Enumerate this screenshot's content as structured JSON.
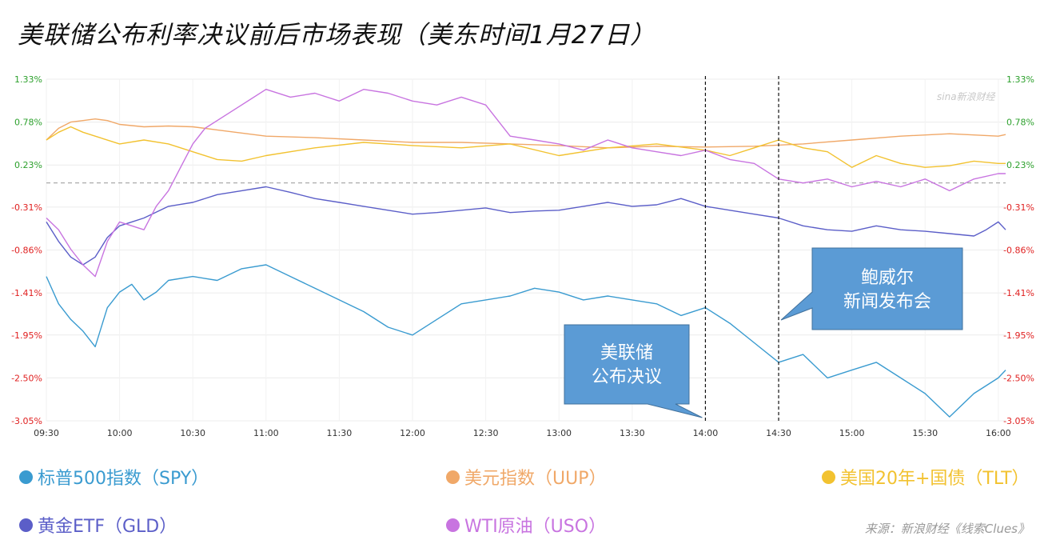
{
  "title": "美联储公布利率决议前后市场表现（美东时间1月27日）",
  "watermark": "sina新浪财经",
  "source": "来源：新浪财经《线索Clues》",
  "colors": {
    "spy": "#3a9bd0",
    "uup": "#f0a868",
    "tlt": "#f2c230",
    "gld": "#5b5ec8",
    "uso": "#c874e0",
    "positive_tick": "#2ca02c",
    "negative_tick": "#e02020",
    "callout_fill": "#5b9bd5",
    "baseline": "#aaaaaa"
  },
  "chart_data": {
    "type": "line",
    "x_ticks": [
      "09:30",
      "10:00",
      "10:30",
      "11:00",
      "11:30",
      "12:00",
      "12:30",
      "13:00",
      "13:30",
      "14:00",
      "14:30",
      "15:00",
      "15:30",
      "16:00"
    ],
    "x_range_minutes": [
      570,
      963
    ],
    "y_ticks": [
      "1.33%",
      "0.78%",
      "0.23%",
      "-0.31%",
      "-0.86%",
      "-1.41%",
      "-1.95%",
      "-2.50%",
      "-3.05%"
    ],
    "y_tick_values": [
      1.33,
      0.78,
      0.23,
      -0.31,
      -0.86,
      -1.41,
      -1.95,
      -2.5,
      -3.05
    ],
    "ylim": [
      -3.05,
      1.33
    ],
    "baseline": 0,
    "grid": true,
    "series": [
      {
        "key": "uup",
        "name": "美元指数（UUP）",
        "x": [
          570,
          575,
          580,
          585,
          590,
          595,
          600,
          610,
          620,
          630,
          640,
          660,
          680,
          700,
          720,
          740,
          760,
          780,
          800,
          820,
          840,
          860,
          880,
          900,
          920,
          940,
          960,
          963
        ],
        "y": [
          0.55,
          0.7,
          0.78,
          0.8,
          0.82,
          0.8,
          0.75,
          0.72,
          0.73,
          0.72,
          0.68,
          0.6,
          0.58,
          0.55,
          0.52,
          0.52,
          0.5,
          0.48,
          0.45,
          0.47,
          0.46,
          0.47,
          0.5,
          0.55,
          0.6,
          0.63,
          0.6,
          0.62
        ]
      },
      {
        "key": "tlt",
        "name": "美国20年+国债（TLT）",
        "x": [
          570,
          575,
          580,
          585,
          590,
          600,
          610,
          620,
          630,
          640,
          650,
          660,
          680,
          700,
          720,
          740,
          760,
          780,
          800,
          820,
          840,
          850,
          860,
          870,
          880,
          890,
          900,
          910,
          920,
          930,
          940,
          950,
          960,
          963
        ],
        "y": [
          0.55,
          0.65,
          0.72,
          0.65,
          0.6,
          0.5,
          0.55,
          0.5,
          0.4,
          0.3,
          0.28,
          0.35,
          0.45,
          0.52,
          0.48,
          0.45,
          0.5,
          0.35,
          0.45,
          0.5,
          0.42,
          0.35,
          0.45,
          0.55,
          0.45,
          0.4,
          0.2,
          0.35,
          0.25,
          0.2,
          0.22,
          0.28,
          0.25,
          0.25
        ]
      },
      {
        "key": "gld",
        "name": "黄金ETF（GLD）",
        "x": [
          570,
          575,
          580,
          585,
          590,
          595,
          600,
          605,
          610,
          620,
          630,
          640,
          650,
          660,
          670,
          680,
          690,
          700,
          710,
          720,
          730,
          740,
          750,
          760,
          770,
          780,
          790,
          800,
          810,
          820,
          830,
          840,
          850,
          860,
          870,
          880,
          890,
          900,
          910,
          920,
          930,
          940,
          950,
          955,
          960,
          963
        ],
        "y": [
          -0.5,
          -0.75,
          -0.95,
          -1.05,
          -0.95,
          -0.7,
          -0.55,
          -0.5,
          -0.45,
          -0.3,
          -0.25,
          -0.15,
          -0.1,
          -0.05,
          -0.12,
          -0.2,
          -0.25,
          -0.3,
          -0.35,
          -0.4,
          -0.38,
          -0.35,
          -0.32,
          -0.38,
          -0.36,
          -0.35,
          -0.3,
          -0.25,
          -0.3,
          -0.28,
          -0.2,
          -0.3,
          -0.35,
          -0.4,
          -0.45,
          -0.55,
          -0.6,
          -0.62,
          -0.55,
          -0.6,
          -0.62,
          -0.65,
          -0.68,
          -0.6,
          -0.5,
          -0.6
        ]
      },
      {
        "key": "uso",
        "name": "WTI原油（USO）",
        "x": [
          570,
          575,
          580,
          585,
          590,
          595,
          600,
          605,
          610,
          615,
          620,
          625,
          630,
          635,
          640,
          650,
          660,
          670,
          680,
          690,
          700,
          710,
          720,
          730,
          740,
          750,
          760,
          770,
          780,
          790,
          800,
          810,
          820,
          830,
          840,
          850,
          860,
          870,
          880,
          890,
          900,
          910,
          920,
          930,
          940,
          950,
          960,
          963
        ],
        "y": [
          -0.45,
          -0.6,
          -0.85,
          -1.05,
          -1.2,
          -0.75,
          -0.5,
          -0.55,
          -0.6,
          -0.3,
          -0.1,
          0.2,
          0.5,
          0.7,
          0.8,
          1.0,
          1.2,
          1.1,
          1.15,
          1.05,
          1.2,
          1.15,
          1.05,
          1.0,
          1.1,
          1.0,
          0.6,
          0.55,
          0.5,
          0.42,
          0.55,
          0.45,
          0.4,
          0.35,
          0.42,
          0.3,
          0.25,
          0.05,
          0.0,
          0.05,
          -0.05,
          0.02,
          -0.05,
          0.05,
          -0.1,
          0.05,
          0.12,
          0.12
        ]
      },
      {
        "key": "spy",
        "name": "标普500指数（SPY）",
        "x": [
          570,
          575,
          580,
          585,
          590,
          595,
          600,
          605,
          610,
          615,
          620,
          630,
          640,
          650,
          660,
          670,
          680,
          690,
          700,
          710,
          720,
          730,
          740,
          750,
          760,
          770,
          780,
          790,
          800,
          810,
          820,
          830,
          840,
          850,
          860,
          870,
          880,
          890,
          900,
          910,
          920,
          930,
          940,
          950,
          960,
          963
        ],
        "y": [
          -1.2,
          -1.55,
          -1.75,
          -1.9,
          -2.1,
          -1.6,
          -1.4,
          -1.3,
          -1.5,
          -1.4,
          -1.25,
          -1.2,
          -1.25,
          -1.1,
          -1.05,
          -1.2,
          -1.35,
          -1.5,
          -1.65,
          -1.85,
          -1.95,
          -1.75,
          -1.55,
          -1.5,
          -1.45,
          -1.35,
          -1.4,
          -1.5,
          -1.45,
          -1.5,
          -1.55,
          -1.7,
          -1.6,
          -1.8,
          -2.05,
          -2.3,
          -2.2,
          -2.5,
          -2.4,
          -2.3,
          -2.5,
          -2.7,
          -3.0,
          -2.7,
          -2.5,
          -2.4
        ]
      }
    ],
    "annotations": [
      {
        "time": 840,
        "text_lines": [
          "美联储",
          "公布决议"
        ]
      },
      {
        "time": 870,
        "text_lines": [
          "鲍威尔",
          "新闻发布会"
        ]
      }
    ]
  },
  "legend": [
    {
      "key": "spy",
      "label": "标普500指数（SPY）"
    },
    {
      "key": "uup",
      "label": "美元指数（UUP）"
    },
    {
      "key": "tlt",
      "label": "美国20年+国债（TLT）"
    },
    {
      "key": "gld",
      "label": "黄金ETF（GLD）"
    },
    {
      "key": "uso",
      "label": "WTI原油（USO）"
    }
  ]
}
